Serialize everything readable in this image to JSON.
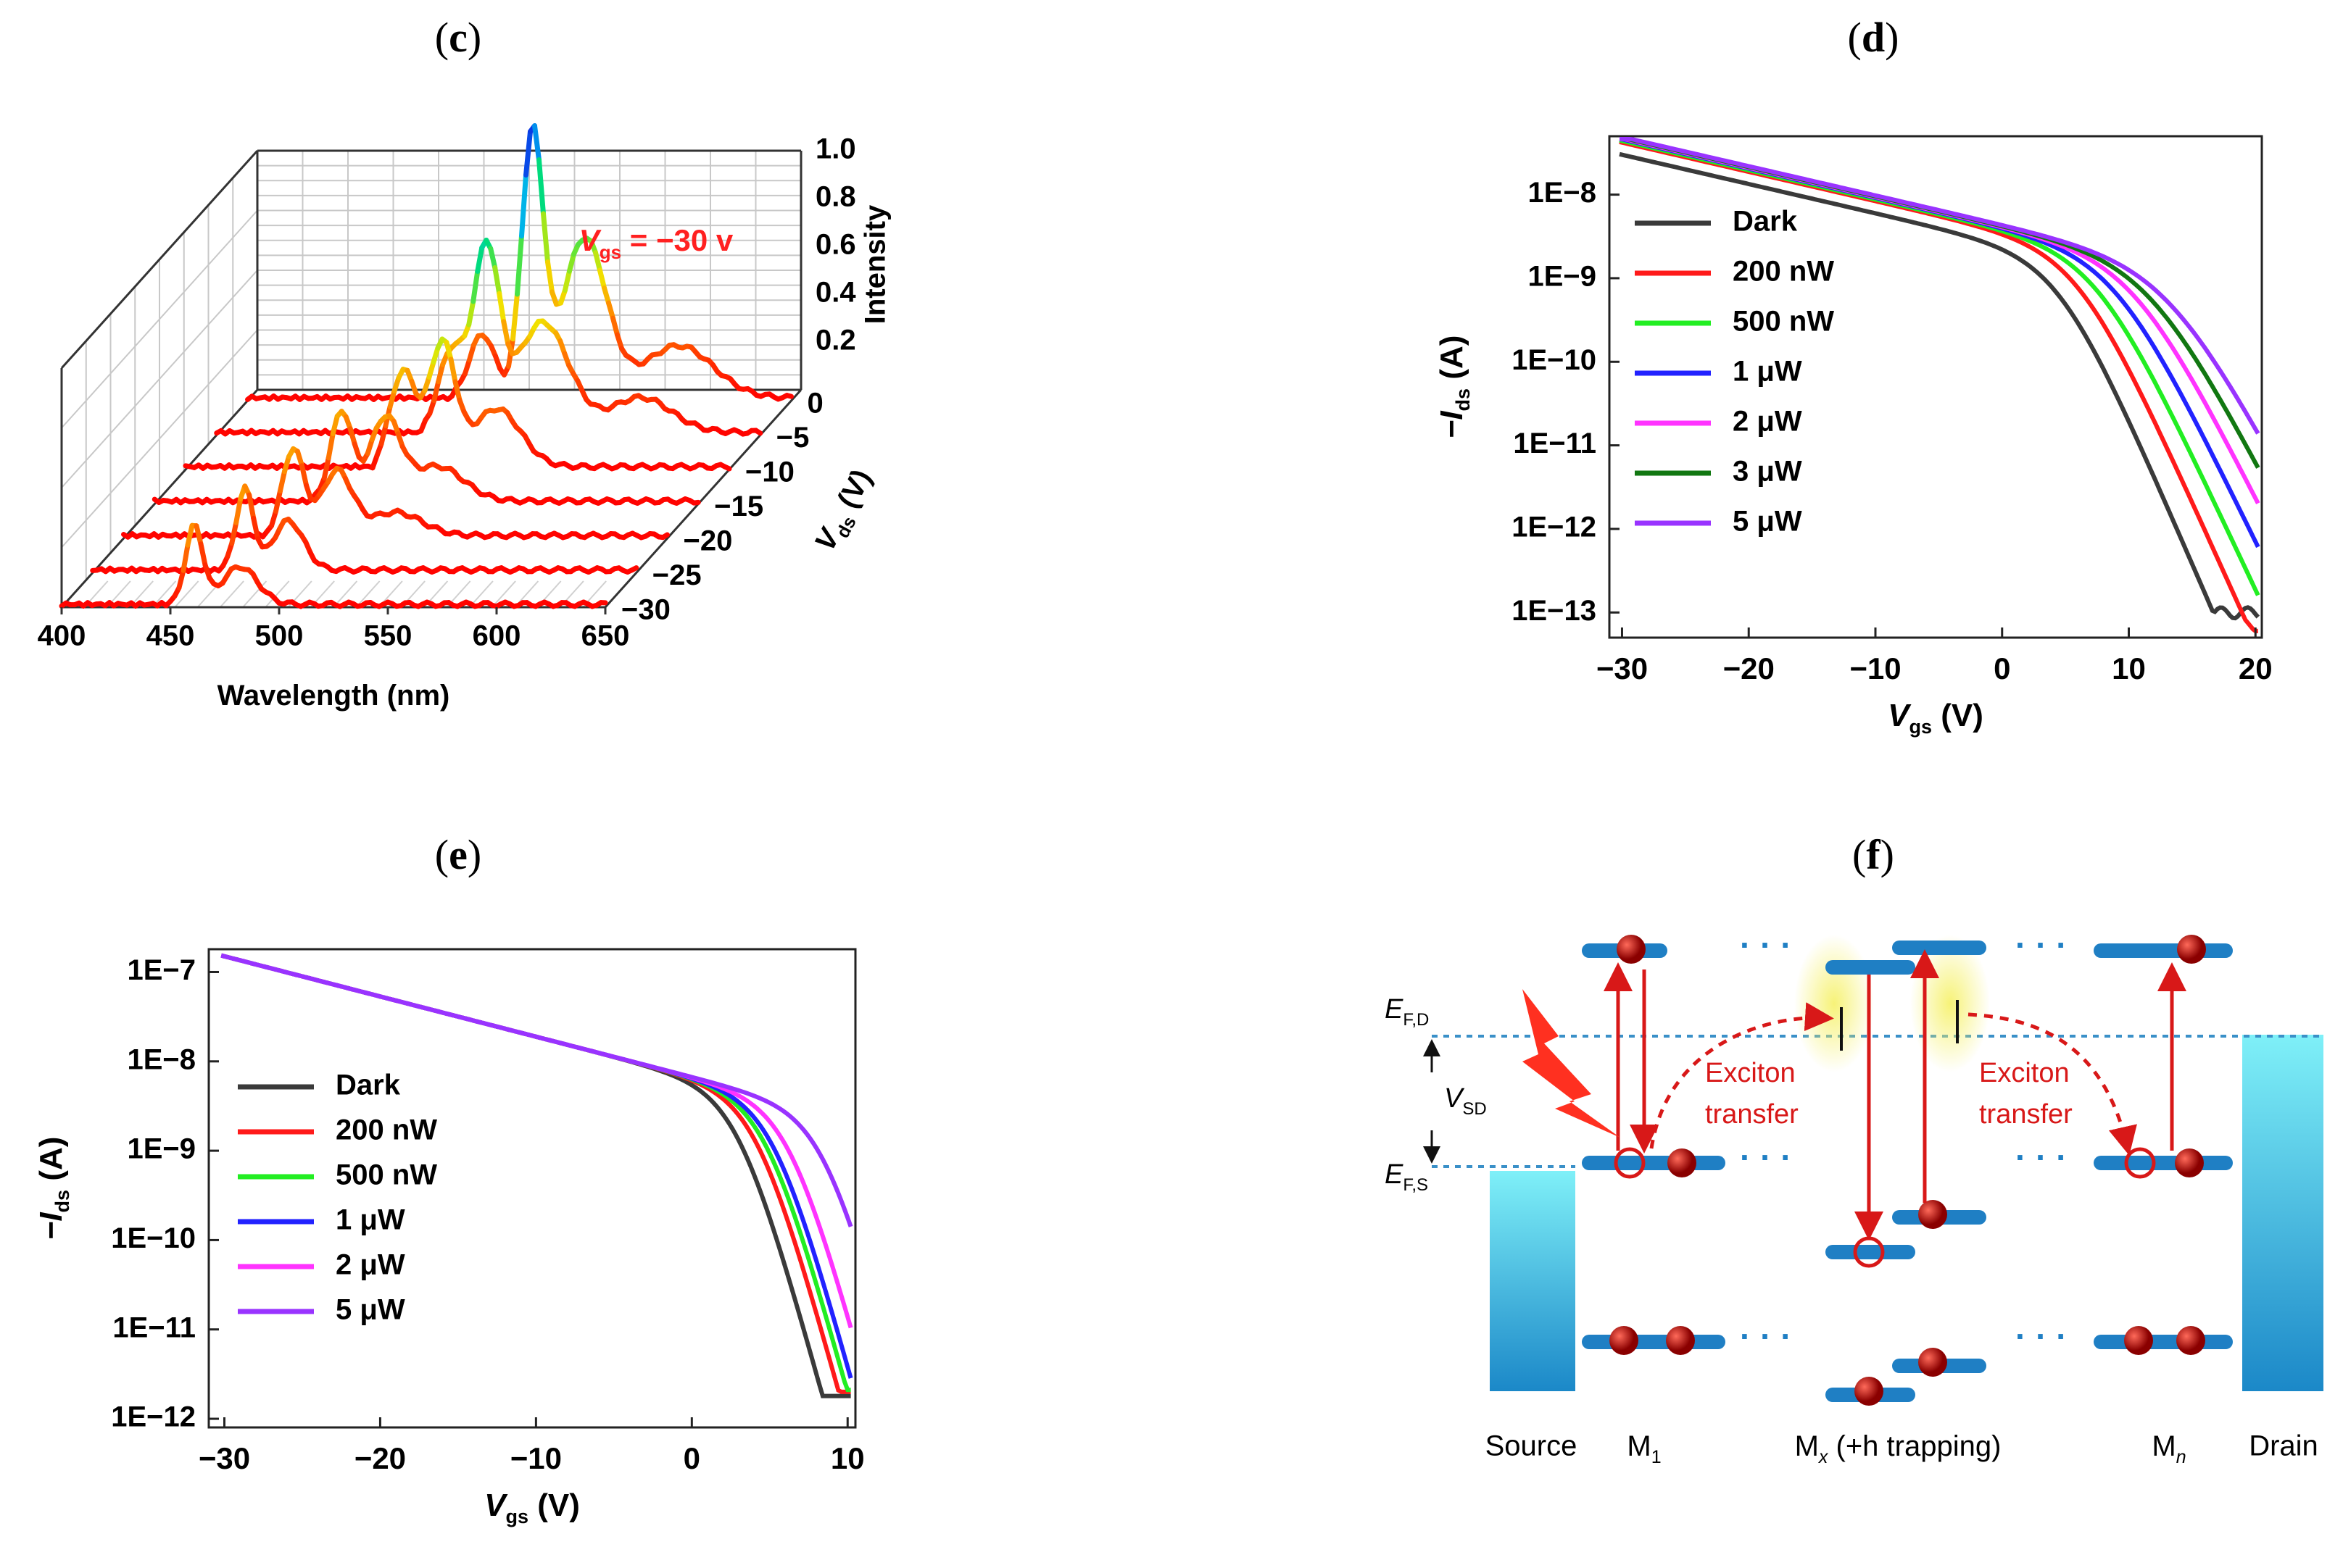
{
  "panels": {
    "c": "c",
    "d": "d",
    "e": "e",
    "f": "f"
  },
  "colors": {
    "dark": "#3a3a3a",
    "p200": "#ff1a1a",
    "p500": "#22ee22",
    "p1": "#2222ff",
    "p2": "#ff33ff",
    "p3": "#117711",
    "p5": "#9933ff",
    "diagram_red": "#d81818",
    "diagram_blue": "#1f7fc4",
    "electrode": "#5fd6e8"
  },
  "chart_data": [
    {
      "id": "c",
      "type": "line",
      "title": "",
      "annotation": "V",
      "annotation_sub": "gs",
      "annotation_rest": " = −30 v",
      "xlabel": "Wavelength (nm)",
      "xlim": [
        400,
        650
      ],
      "xticks": [
        400,
        450,
        500,
        550,
        600,
        650
      ],
      "ylabel": "V",
      "ylabel_sub": "ds",
      "ylabel_unit": " (V)",
      "yticks": [
        0,
        -5,
        -10,
        -15,
        -20,
        -25,
        -30
      ],
      "zlabel": "Intensity",
      "zticks": [
        0.2,
        0.4,
        0.6,
        0.8,
        1.0
      ],
      "series": [
        {
          "vds": 0,
          "peaks": [
            [
              508,
              0.22,
              6
            ],
            [
              531,
              0.91,
              5
            ],
            [
              555,
              0.55,
              10
            ],
            [
              598,
              0.18,
              16
            ]
          ]
        },
        {
          "vds": -5,
          "peaks": [
            [
              508,
              0.28,
              6
            ],
            [
              524,
              0.62,
              6
            ],
            [
              550,
              0.38,
              12
            ],
            [
              595,
              0.12,
              14
            ]
          ]
        },
        {
          "vds": -10,
          "peaks": [
            [
              500,
              0.33,
              6
            ],
            [
              518,
              0.42,
              6
            ],
            [
              543,
              0.2,
              11
            ]
          ]
        },
        {
          "vds": -15,
          "peaks": [
            [
              486,
              0.31,
              5
            ],
            [
              506,
              0.28,
              7
            ],
            [
              530,
              0.12,
              12
            ]
          ]
        },
        {
          "vds": -20,
          "peaks": [
            [
              478,
              0.3,
              5
            ],
            [
              498,
              0.22,
              7
            ],
            [
              525,
              0.08,
              12
            ]
          ]
        },
        {
          "vds": -25,
          "peaks": [
            [
              470,
              0.28,
              4
            ],
            [
              490,
              0.17,
              7
            ]
          ]
        },
        {
          "vds": -30,
          "peaks": [
            [
              461,
              0.27,
              4
            ],
            [
              482,
              0.13,
              8
            ]
          ]
        }
      ]
    },
    {
      "id": "d",
      "type": "line",
      "xlabel": "V",
      "xlabel_sub": "gs",
      "xlabel_unit": " (V)",
      "ylabel": "−I",
      "ylabel_sub": "ds",
      "ylabel_unit": " (A)",
      "yscale": "log",
      "xlim": [
        -31,
        20.5
      ],
      "ylim": [
        5e-14,
        5e-08
      ],
      "xticks": [
        -30,
        -20,
        -10,
        0,
        10,
        20
      ],
      "yticks": [
        "1E−8",
        "1E−9",
        "1E−10",
        "1E−11",
        "1E−12",
        "1E−13"
      ],
      "legend": [
        "Dark",
        "200 nW",
        "500 nW",
        "1 μW",
        "2 μW",
        "3 μW",
        "5 μW"
      ],
      "series": [
        {
          "name": "Dark",
          "Vth": 4.5,
          "Ion": 3e-08,
          "floor": 1e-13,
          "ss": 2.2
        },
        {
          "name": "200 nW",
          "Vth": 6.0,
          "Ion": 4.2e-08,
          "floor": 7e-14,
          "ss": 2.3
        },
        {
          "name": "500 nW",
          "Vth": 7.5,
          "Ion": 4.4e-08,
          "floor": 6.8e-14,
          "ss": 2.4
        },
        {
          "name": "1 μW",
          "Vth": 9.0,
          "Ion": 4.6e-08,
          "floor": 7.5e-14,
          "ss": 2.5
        },
        {
          "name": "2 μW",
          "Vth": 10.5,
          "Ion": 4.7e-08,
          "floor": 8e-14,
          "ss": 2.6
        },
        {
          "name": "3 μW",
          "Vth": 11.8,
          "Ion": 4.8e-08,
          "floor": 9e-14,
          "ss": 2.7
        },
        {
          "name": "5 μW",
          "Vth": 13.2,
          "Ion": 4.9e-08,
          "floor": 1.3e-13,
          "ss": 2.8
        }
      ]
    },
    {
      "id": "e",
      "type": "line",
      "xlabel": "V",
      "xlabel_sub": "gs",
      "xlabel_unit": " (V)",
      "ylabel": "−I",
      "ylabel_sub": "ds",
      "ylabel_unit": " (A)",
      "yscale": "log",
      "xlim": [
        -31,
        10.5
      ],
      "ylim": [
        8e-13,
        1.8e-07
      ],
      "xticks": [
        -30,
        -20,
        -10,
        0,
        10
      ],
      "yticks": [
        "1E−7",
        "1E−8",
        "1E−9",
        "1E−10",
        "1E−11",
        "1E−12"
      ],
      "legend": [
        "Dark",
        "200 nW",
        "500 nW",
        "1 μW",
        "2 μW",
        "5 μW"
      ],
      "series": [
        {
          "name": "Dark",
          "knee": 6.0,
          "floor": 1.8e-12
        },
        {
          "name": "200 nW",
          "knee": 7.2,
          "floor": 2e-12
        },
        {
          "name": "500 nW",
          "knee": 7.8,
          "floor": 2.1e-12
        },
        {
          "name": "1 μW",
          "knee": 8.3,
          "floor": 2.3e-12
        },
        {
          "name": "2 μW",
          "knee": 9.3,
          "floor": 4e-12
        },
        {
          "name": "5 μW",
          "knee": 11.5,
          "floor": 1.5e-11
        }
      ]
    }
  ],
  "diagram_f": {
    "efd": "E",
    "efd_sub": "F,D",
    "efs": "E",
    "efs_sub": "F,S",
    "vsd": "V",
    "vsd_sub": "SD",
    "exciton1": [
      "Exciton",
      "transfer"
    ],
    "exciton2": [
      "Exciton",
      "transfer"
    ],
    "source": "Source",
    "m1": "M",
    "m1_sub": "1",
    "mx": "M",
    "mx_sub": "x",
    "mx_rest": " (+h trapping)",
    "mn": "M",
    "mn_sub": "n",
    "drain": "Drain",
    "dots": "· · ·"
  }
}
